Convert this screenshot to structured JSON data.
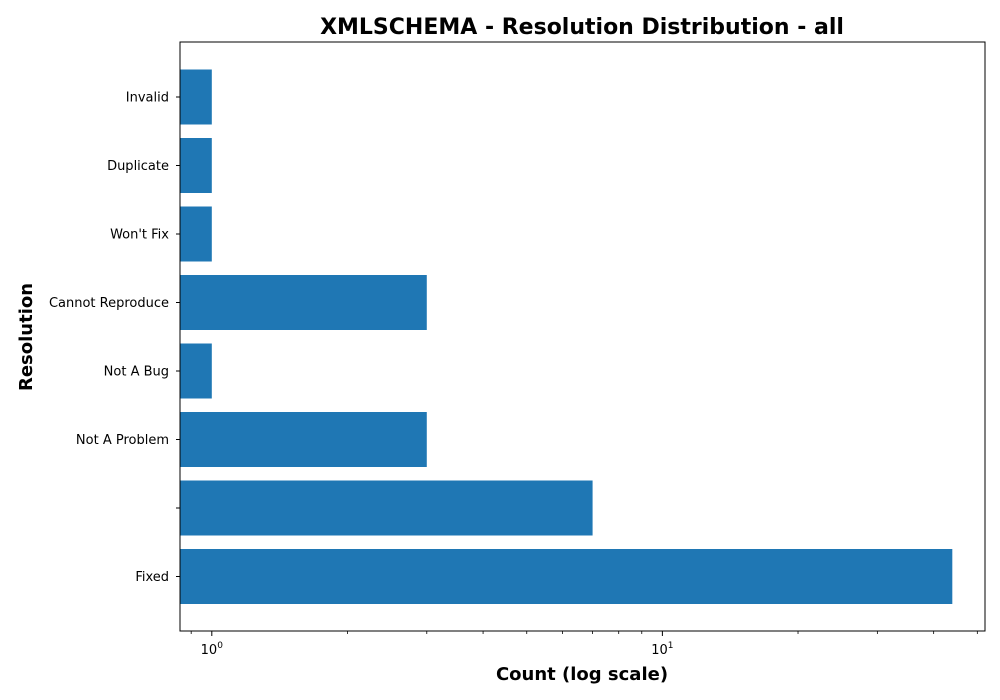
{
  "chart_data": {
    "type": "bar",
    "orientation": "horizontal",
    "title": "XMLSCHEMA - Resolution Distribution - all",
    "xlabel": "Count (log scale)",
    "ylabel": "Resolution",
    "x_scale": "log",
    "xlim": [
      0.85,
      52
    ],
    "x_major_ticks": [
      {
        "value": 1,
        "base": "10",
        "exponent": "0"
      },
      {
        "value": 10,
        "base": "10",
        "exponent": "1"
      }
    ],
    "categories": [
      "Fixed",
      "",
      "Not A Problem",
      "Not A Bug",
      "Cannot Reproduce",
      "Won't Fix",
      "Duplicate",
      "Invalid"
    ],
    "values": [
      44,
      7,
      3,
      1,
      3,
      1,
      1,
      1
    ],
    "bar_color": "#1f77b4",
    "grid": false
  }
}
